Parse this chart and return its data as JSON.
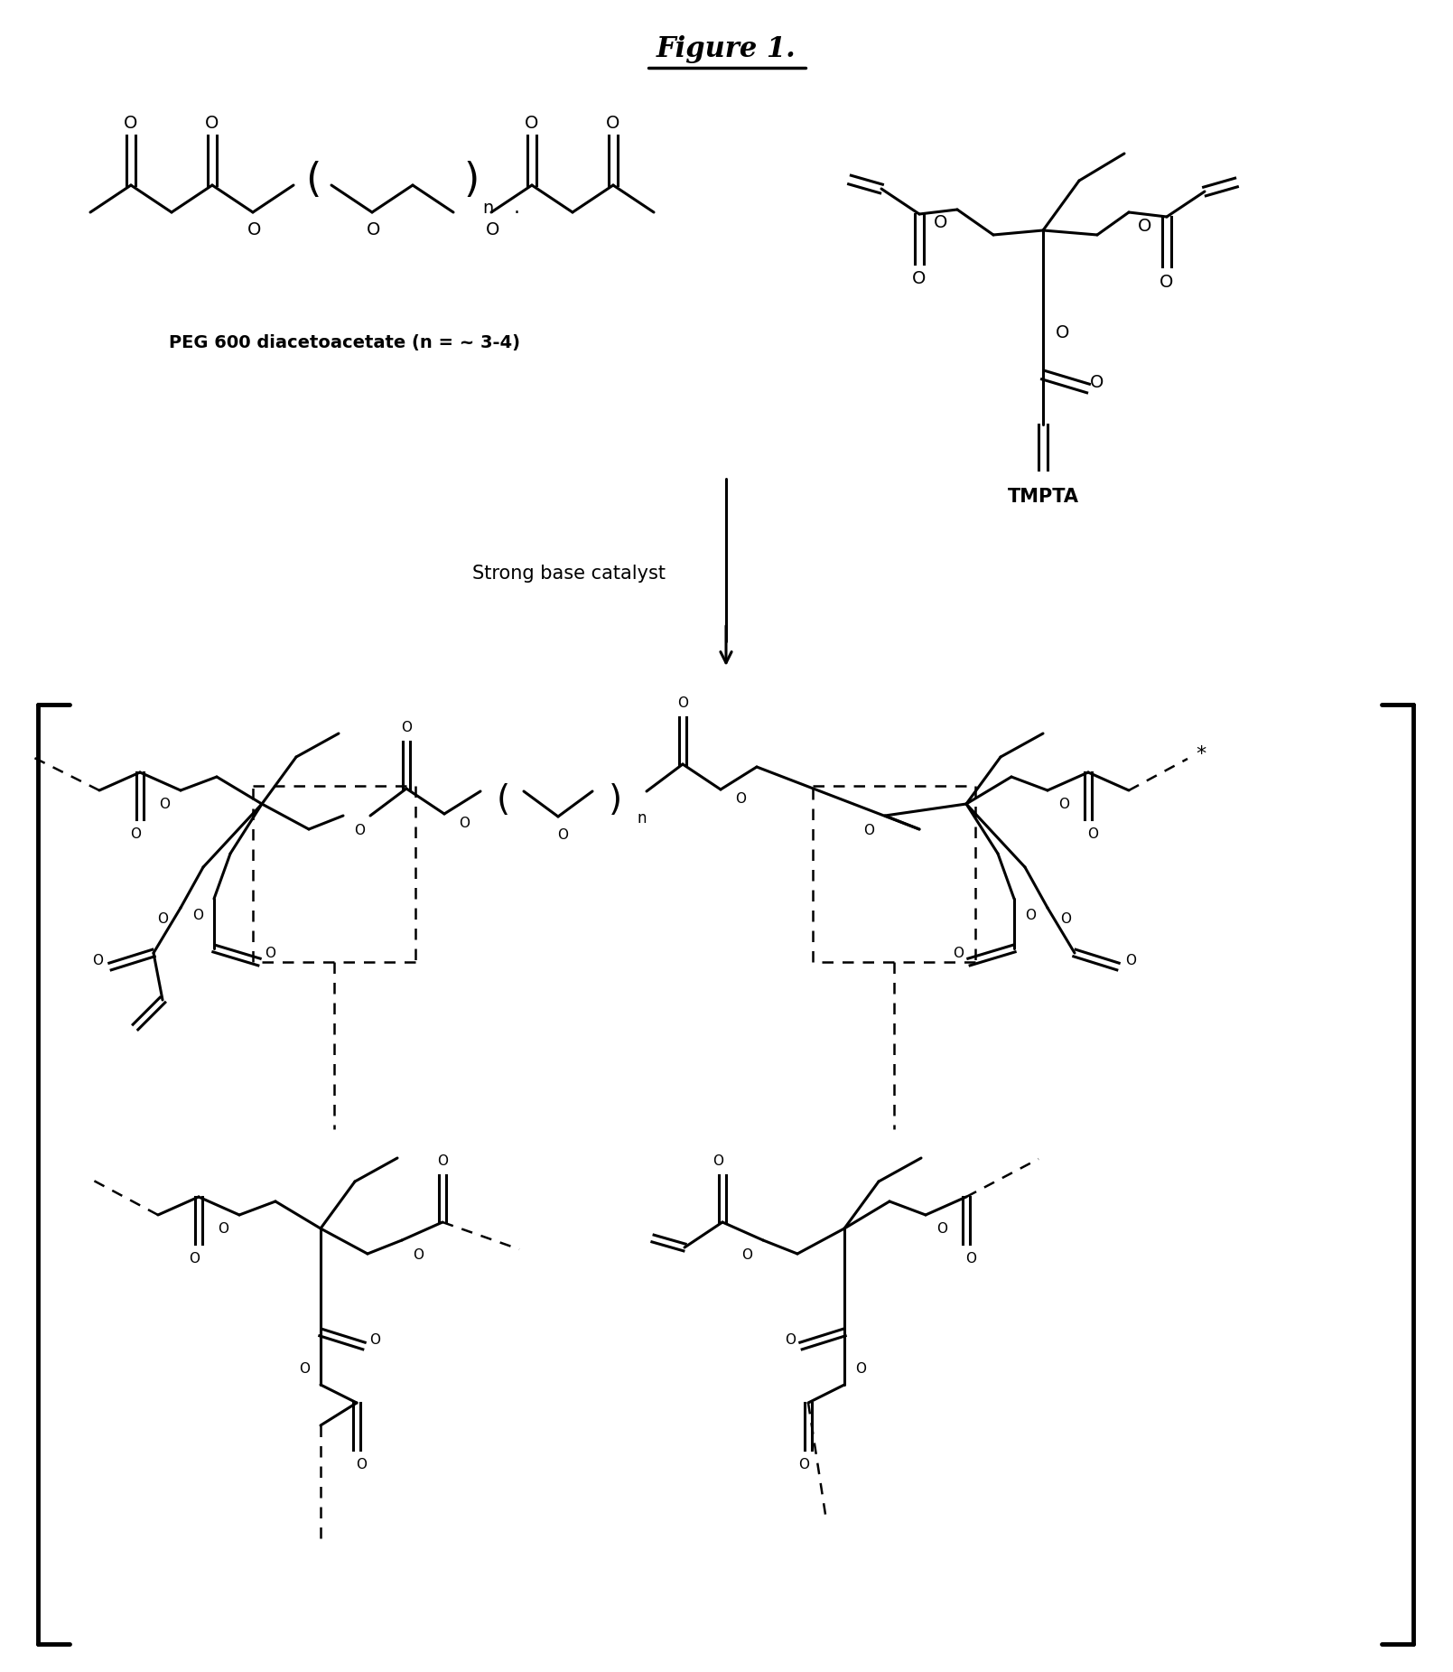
{
  "title": "Figure 1.",
  "background_color": "#ffffff",
  "label_peg": "PEG 600 diacetoacetate (n = ~ 3-4)",
  "label_tmpta": "TMPTA",
  "label_catalyst": "Strong base catalyst",
  "fig_width": 16.09,
  "fig_height": 18.51,
  "dpi": 100
}
